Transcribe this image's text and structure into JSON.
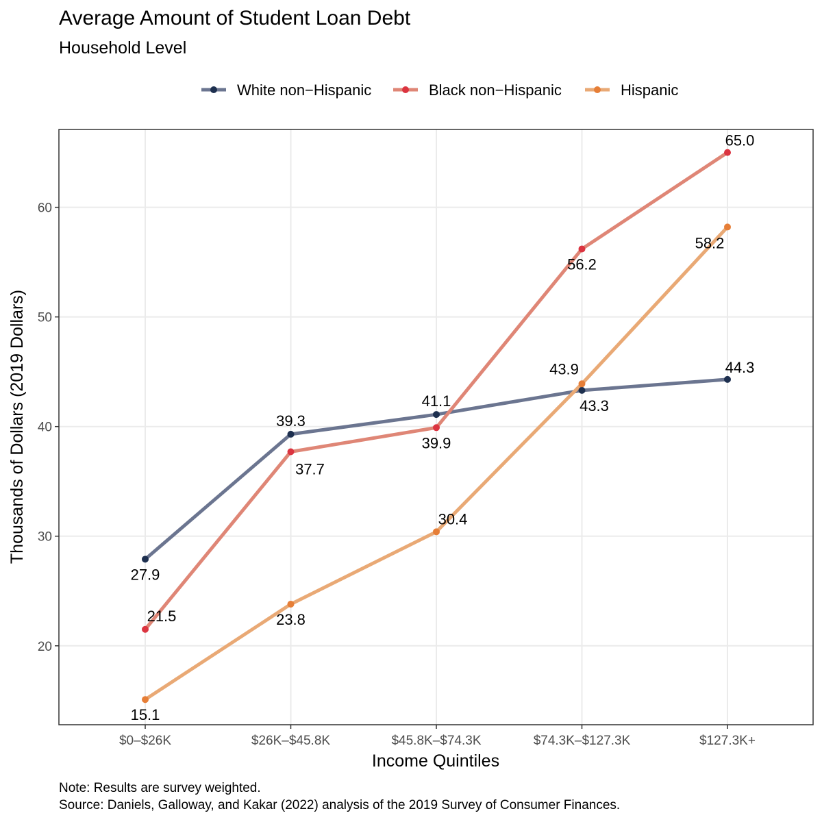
{
  "chart_data": {
    "type": "line",
    "title": "Average Amount of Student Loan Debt",
    "subtitle": "Household Level",
    "xlabel": "Income Quintiles",
    "ylabel": "Thousands of Dollars (2019 Dollars)",
    "categories": [
      "$0–$26K",
      "$26K–$45.8K",
      "$45.8K–$74.3K",
      "$74.3K–$127.3K",
      "$127.3K+"
    ],
    "ylim": [
      12.8,
      67.1
    ],
    "yticks": [
      20,
      30,
      40,
      50,
      60
    ],
    "grid": true,
    "legend_position": "top",
    "series": [
      {
        "name": "White non−Hispanic",
        "values": [
          27.9,
          39.3,
          41.1,
          43.3,
          44.3
        ],
        "labels": [
          "27.9",
          "39.3",
          "41.1",
          "43.3",
          "44.3"
        ],
        "line_color": "#6b7590",
        "point_color": "#1d2f4f"
      },
      {
        "name": "Black non−Hispanic",
        "values": [
          21.5,
          37.7,
          39.9,
          56.2,
          65.0
        ],
        "labels": [
          "21.5",
          "37.7",
          "39.9",
          "56.2",
          "65.0"
        ],
        "line_color": "#df8676",
        "point_color": "#db3440"
      },
      {
        "name": "Hispanic",
        "values": [
          15.1,
          23.8,
          30.4,
          43.9,
          58.2
        ],
        "labels": [
          "15.1",
          "23.8",
          "30.4",
          "43.9",
          "58.2"
        ],
        "line_color": "#e9a975",
        "point_color": "#e67e37"
      }
    ],
    "notes": [
      "Note: Results are survey weighted.",
      "Source: Daniels, Galloway, and Kakar (2022) analysis of the 2019 Survey of Consumer Finances."
    ]
  }
}
